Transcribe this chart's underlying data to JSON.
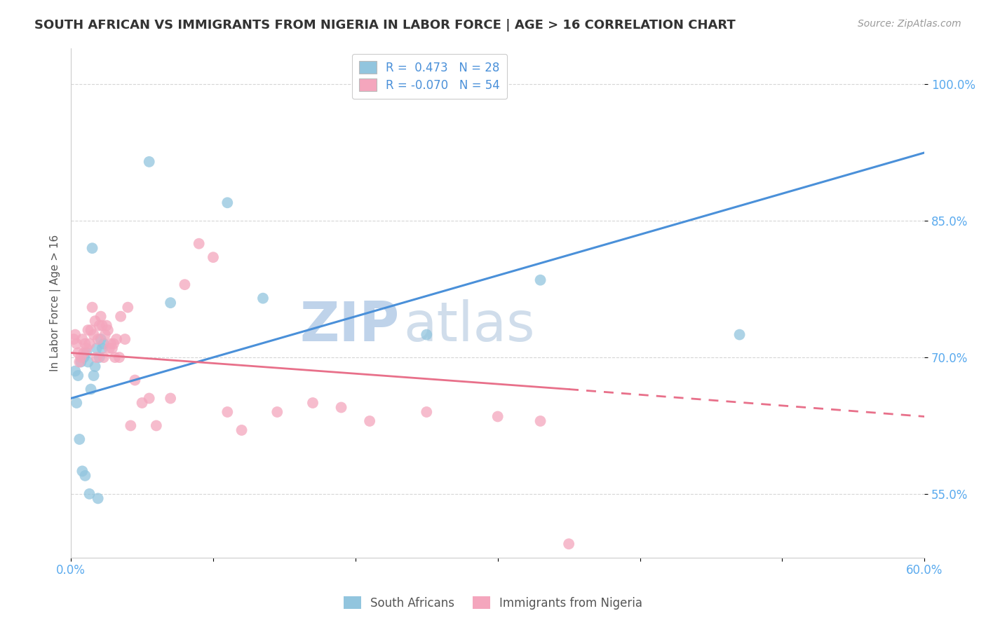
{
  "title": "SOUTH AFRICAN VS IMMIGRANTS FROM NIGERIA IN LABOR FORCE | AGE > 16 CORRELATION CHART",
  "source": "Source: ZipAtlas.com",
  "ylabel": "In Labor Force | Age > 16",
  "xlim": [
    0.0,
    60.0
  ],
  "ylim": [
    48.0,
    104.0
  ],
  "ytick_labels": [
    "55.0%",
    "70.0%",
    "85.0%",
    "100.0%"
  ],
  "ytick_values": [
    55.0,
    70.0,
    85.0,
    100.0
  ],
  "xtick_values": [
    0.0,
    10.0,
    20.0,
    30.0,
    40.0,
    50.0,
    60.0
  ],
  "xtick_labels": [
    "0.0%",
    "",
    "",
    "",
    "",
    "",
    "60.0%"
  ],
  "blue_R": "0.473",
  "blue_N": "28",
  "pink_R": "-0.070",
  "pink_N": "54",
  "blue_color": "#92c5de",
  "pink_color": "#f4a6bd",
  "blue_line_color": "#4a90d9",
  "pink_line_color": "#e8708a",
  "legend_label_blue": "South Africans",
  "legend_label_pink": "Immigrants from Nigeria",
  "watermark": "ZIPatlas",
  "watermark_color": "#c5d8ea",
  "blue_line_x0": 0.0,
  "blue_line_y0": 65.5,
  "blue_line_x1": 60.0,
  "blue_line_y1": 92.5,
  "pink_line_x0": 0.0,
  "pink_line_y0": 70.5,
  "pink_line_x1_solid": 35.0,
  "pink_line_y1_solid": 66.5,
  "pink_line_x1_dash": 60.0,
  "pink_line_y1_dash": 63.5,
  "blue_scatter_x": [
    0.3,
    0.5,
    0.7,
    0.9,
    1.0,
    1.1,
    1.2,
    1.3,
    1.4,
    1.5,
    1.6,
    1.8,
    1.9,
    2.0,
    2.1,
    2.2,
    2.3,
    0.4,
    0.6,
    0.8,
    1.7,
    13.5,
    25.0,
    33.0,
    47.0,
    11.0,
    5.5,
    7.0
  ],
  "blue_scatter_y": [
    68.5,
    68.0,
    69.5,
    70.0,
    57.0,
    70.5,
    69.5,
    55.0,
    66.5,
    82.0,
    68.0,
    71.0,
    54.5,
    70.0,
    72.0,
    71.0,
    71.5,
    65.0,
    61.0,
    57.5,
    69.0,
    76.5,
    72.5,
    78.5,
    72.5,
    87.0,
    91.5,
    76.0
  ],
  "pink_scatter_x": [
    0.2,
    0.3,
    0.4,
    0.5,
    0.6,
    0.7,
    0.8,
    0.9,
    1.0,
    1.1,
    1.2,
    1.3,
    1.4,
    1.5,
    1.6,
    1.7,
    1.8,
    1.9,
    2.0,
    2.1,
    2.2,
    2.3,
    2.4,
    2.5,
    2.6,
    2.7,
    2.8,
    2.9,
    3.0,
    3.1,
    3.2,
    3.4,
    3.5,
    3.8,
    4.0,
    4.2,
    4.5,
    5.0,
    5.5,
    6.0,
    7.0,
    8.0,
    9.0,
    10.0,
    11.0,
    12.0,
    14.5,
    17.0,
    19.0,
    21.0,
    25.0,
    30.0,
    33.0,
    35.0
  ],
  "pink_scatter_y": [
    72.0,
    72.5,
    71.5,
    70.5,
    69.5,
    70.0,
    72.0,
    70.5,
    71.5,
    71.0,
    73.0,
    71.5,
    73.0,
    75.5,
    72.5,
    74.0,
    70.0,
    72.0,
    73.5,
    74.5,
    73.5,
    70.0,
    72.5,
    73.5,
    73.0,
    71.0,
    71.5,
    71.0,
    71.5,
    70.0,
    72.0,
    70.0,
    74.5,
    72.0,
    75.5,
    62.5,
    67.5,
    65.0,
    65.5,
    62.5,
    65.5,
    78.0,
    82.5,
    81.0,
    64.0,
    62.0,
    64.0,
    65.0,
    64.5,
    63.0,
    64.0,
    63.5,
    63.0,
    49.5
  ],
  "background_color": "#ffffff",
  "grid_color": "#cccccc",
  "tick_color": "#5aaaee"
}
